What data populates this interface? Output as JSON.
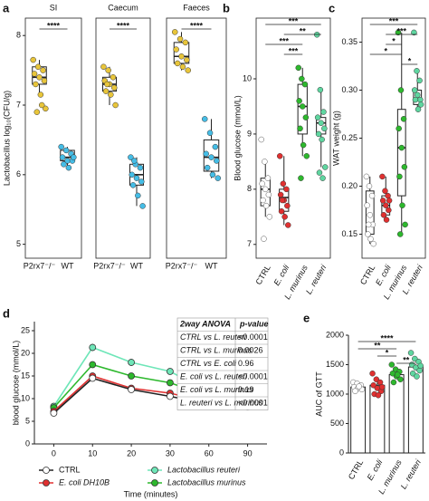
{
  "chart_data": [
    {
      "type": "box",
      "panel": "a",
      "title": "SI",
      "ylabel": "Lactobacillus log₁₀(CFU/g)",
      "ylim": [
        4.8,
        8.25
      ],
      "yticks": [
        5,
        6,
        7,
        8
      ],
      "groups": [
        {
          "name": "P2rx7⁻/⁻",
          "color": "#e8c53a",
          "values": [
            7.65,
            7.55,
            7.5,
            7.45,
            7.4,
            7.35,
            7.3,
            7.15,
            6.95,
            6.9,
            7.0
          ],
          "box": {
            "whislo": 7.15,
            "q1": 7.3,
            "med": 7.4,
            "q3": 7.55,
            "whishi": 7.65
          }
        },
        {
          "name": "WT",
          "color": "#45bde6",
          "values": [
            6.4,
            6.35,
            6.3,
            6.25,
            6.2,
            6.2,
            6.15,
            6.1,
            6.25
          ],
          "box": {
            "whislo": 6.1,
            "q1": 6.2,
            "med": 6.25,
            "q3": 6.35,
            "whishi": 6.4
          }
        }
      ],
      "significance": [
        {
          "from": 0,
          "to": 1,
          "label": "****"
        }
      ]
    },
    {
      "type": "box",
      "title": "Caecum",
      "ylim": [
        4.8,
        8.25
      ],
      "groups": [
        {
          "name": "P2rx7⁻/⁻",
          "color": "#e8c53a",
          "values": [
            7.55,
            7.5,
            7.4,
            7.35,
            7.3,
            7.25,
            7.2,
            7.15,
            7.0,
            7.3
          ],
          "box": {
            "whislo": 7.0,
            "q1": 7.2,
            "med": 7.3,
            "q3": 7.4,
            "whishi": 7.55
          }
        },
        {
          "name": "WT",
          "color": "#45bde6",
          "values": [
            6.25,
            6.15,
            6.1,
            6.0,
            5.95,
            5.9,
            5.85,
            5.7,
            5.55,
            6.2
          ],
          "box": {
            "whislo": 5.55,
            "q1": 5.85,
            "med": 6.0,
            "q3": 6.15,
            "whishi": 6.25
          }
        }
      ],
      "significance": [
        {
          "from": 0,
          "to": 1,
          "label": "****"
        }
      ]
    },
    {
      "type": "box",
      "title": "Faeces",
      "ylim": [
        4.8,
        8.25
      ],
      "groups": [
        {
          "name": "P2rx7⁻/⁻",
          "color": "#e8c53a",
          "values": [
            8.05,
            7.95,
            7.9,
            7.8,
            7.7,
            7.65,
            7.6,
            7.55,
            7.5
          ],
          "box": {
            "whislo": 7.5,
            "q1": 7.6,
            "med": 7.7,
            "q3": 7.9,
            "whishi": 8.05
          }
        },
        {
          "name": "WT",
          "color": "#45bde6",
          "values": [
            6.8,
            6.6,
            6.4,
            6.3,
            6.25,
            6.2,
            6.1,
            6.0,
            5.95
          ],
          "box": {
            "whislo": 5.95,
            "q1": 6.05,
            "med": 6.25,
            "q3": 6.5,
            "whishi": 6.8
          }
        }
      ],
      "significance": [
        {
          "from": 0,
          "to": 1,
          "label": "****"
        }
      ]
    },
    {
      "type": "box",
      "panel": "b",
      "ylabel": "Blood glucose (mmol/L)",
      "ylim": [
        6.75,
        11.1
      ],
      "yticks": [
        7,
        8,
        9,
        10
      ],
      "groups": [
        {
          "name": "CTRL",
          "color": "#ffffff",
          "values": [
            8.9,
            8.5,
            8.2,
            8.1,
            8.0,
            7.9,
            7.8,
            7.7,
            7.5,
            7.1
          ],
          "box": {
            "whislo": 7.5,
            "q1": 7.7,
            "med": 8.0,
            "q3": 8.2,
            "whishi": 8.5
          }
        },
        {
          "name": "E. coli",
          "color": "#e03030",
          "values": [
            8.6,
            8.1,
            8.0,
            7.9,
            7.8,
            7.7,
            7.6,
            7.5,
            7.35,
            7.8
          ],
          "box": {
            "whislo": 7.35,
            "q1": 7.6,
            "med": 7.85,
            "q3": 8.0,
            "whishi": 8.6
          }
        },
        {
          "name": "L. murinus",
          "color": "#2db82d",
          "values": [
            10.2,
            10.0,
            9.9,
            9.6,
            9.5,
            9.3,
            9.1,
            8.8,
            8.6,
            8.2
          ],
          "box": {
            "whislo": 8.6,
            "q1": 9.0,
            "med": 9.5,
            "q3": 9.9,
            "whishi": 10.2
          }
        },
        {
          "name": "L. reuteri",
          "color": "#5fd6a0",
          "values": [
            10.8,
            9.8,
            9.4,
            9.3,
            9.2,
            9.1,
            9.0,
            8.9,
            8.4,
            8.3,
            8.2
          ],
          "box": {
            "whislo": 8.4,
            "q1": 9.0,
            "med": 9.2,
            "q3": 9.3,
            "whishi": 9.8
          }
        }
      ],
      "significance": [
        {
          "from": 0,
          "to": 3,
          "label": "***"
        },
        {
          "from": 1,
          "to": 3,
          "label": "**"
        },
        {
          "from": 0,
          "to": 2,
          "label": "***"
        },
        {
          "from": 1,
          "to": 2,
          "label": "***"
        }
      ]
    },
    {
      "type": "box",
      "panel": "c",
      "ylabel": "WAT weight (g)",
      "ylim": [
        0.125,
        0.375
      ],
      "yticks": [
        {
          "value": 0.15,
          "label": "0.15"
        },
        {
          "value": 0.2,
          "label": "0.20"
        },
        {
          "value": 0.25,
          "label": "0.25"
        },
        {
          "value": 0.3,
          "label": "0.30"
        },
        {
          "value": 0.35,
          "label": "0.35"
        }
      ],
      "groups": [
        {
          "name": "CTRL",
          "color": "#ffffff",
          "values": [
            0.21,
            0.2,
            0.19,
            0.18,
            0.17,
            0.16,
            0.15,
            0.145,
            0.14,
            0.16
          ],
          "box": {
            "whislo": 0.14,
            "q1": 0.15,
            "med": 0.16,
            "q3": 0.195,
            "whishi": 0.21
          }
        },
        {
          "name": "E. coli",
          "color": "#e03030",
          "values": [
            0.21,
            0.195,
            0.19,
            0.185,
            0.18,
            0.175,
            0.17,
            0.165,
            0.185
          ],
          "box": {
            "whislo": 0.165,
            "q1": 0.17,
            "med": 0.18,
            "q3": 0.19,
            "whishi": 0.21
          }
        },
        {
          "name": "L. murinus",
          "color": "#2db82d",
          "values": [
            0.36,
            0.3,
            0.27,
            0.26,
            0.24,
            0.22,
            0.21,
            0.18,
            0.16,
            0.15
          ],
          "box": {
            "whislo": 0.15,
            "q1": 0.19,
            "med": 0.24,
            "q3": 0.28,
            "whishi": 0.36
          }
        },
        {
          "name": "L. reuteri",
          "color": "#5fd6a0",
          "values": [
            0.36,
            0.32,
            0.31,
            0.3,
            0.295,
            0.29,
            0.29,
            0.28,
            0.285
          ],
          "box": {
            "whislo": 0.28,
            "q1": 0.285,
            "med": 0.29,
            "q3": 0.3,
            "whishi": 0.32
          }
        }
      ],
      "significance": [
        {
          "from": 0,
          "to": 3,
          "label": "***"
        },
        {
          "from": 1,
          "to": 3,
          "label": "***"
        },
        {
          "from": 1,
          "to": 2,
          "label": "*"
        },
        {
          "from": 0,
          "to": 2,
          "label": "*"
        },
        {
          "from": 2,
          "to": 3,
          "label": "*"
        }
      ]
    },
    {
      "type": "line",
      "panel": "d",
      "xlabel": "Time (minutes)",
      "ylabel": "blood glucose (mmol/L)",
      "categories": [
        "0",
        "10",
        "20",
        "30",
        "60",
        "90"
      ],
      "ylim": [
        0,
        27
      ],
      "yticks": [
        0,
        5,
        10,
        15,
        20,
        25
      ],
      "series": [
        {
          "name": "CTRL",
          "color": "#ffffff",
          "values": [
            6.8,
            14.5,
            12.0,
            10.5,
            8.8,
            8.2
          ],
          "errors": [
            0.4,
            0.6,
            0.5,
            0.4,
            0.3,
            0.3
          ]
        },
        {
          "name": "Lactobacillus reuteri",
          "color": "#6ee6b8",
          "values": [
            8.3,
            21.3,
            18.0,
            16.0,
            11.5,
            9.0
          ],
          "errors": [
            0.4,
            0.8,
            0.8,
            0.7,
            0.5,
            0.4
          ]
        },
        {
          "name": "E. coli DH10B",
          "color": "#e03030",
          "values": [
            7.2,
            15.0,
            12.3,
            11.2,
            9.2,
            8.5
          ],
          "errors": [
            0.3,
            0.5,
            0.5,
            0.4,
            0.3,
            0.3
          ]
        },
        {
          "name": "Lactobacillus murinus",
          "color": "#2db82d",
          "values": [
            8.0,
            17.5,
            15.0,
            13.5,
            10.5,
            8.8
          ],
          "errors": [
            0.4,
            0.6,
            0.6,
            0.5,
            0.4,
            0.3
          ]
        }
      ],
      "table": {
        "header": [
          "2way ANOVA",
          "p-value"
        ],
        "rows": [
          [
            "CTRL vs L. reuteri",
            "<0.0001"
          ],
          [
            "CTRL vs L. murinus",
            "0.0026"
          ],
          [
            "CTRL vs E. coli",
            "0.96"
          ],
          [
            "E. coli vs L. reuteri",
            "<0.0001"
          ],
          [
            "E. coli vs L. murinus",
            "0.19"
          ],
          [
            "L. reuteri vs L. murinus",
            "<0.0001"
          ]
        ]
      }
    },
    {
      "type": "bar",
      "panel": "e",
      "ylabel": "AUC of GTT",
      "ylim": [
        0,
        2000
      ],
      "yticks": [
        0,
        500,
        1000,
        1500,
        2000
      ],
      "groups": [
        {
          "name": "CTRL",
          "color": "#ffffff",
          "mean": 1120,
          "error": 40,
          "values": [
            1200,
            1180,
            1150,
            1120,
            1100,
            1080,
            1050,
            1130
          ]
        },
        {
          "name": "E. coli",
          "color": "#e03030",
          "mean": 1150,
          "error": 45,
          "values": [
            1350,
            1250,
            1200,
            1150,
            1100,
            1050,
            1000,
            980,
            1120
          ]
        },
        {
          "name": "L. murinus",
          "color": "#2db82d",
          "mean": 1330,
          "error": 40,
          "values": [
            1500,
            1420,
            1380,
            1350,
            1300,
            1250,
            1200,
            1330
          ]
        },
        {
          "name": "L. reuteri",
          "color": "#5fd6a0",
          "mean": 1460,
          "error": 45,
          "values": [
            1700,
            1600,
            1550,
            1500,
            1450,
            1400,
            1350,
            1300,
            1480
          ]
        }
      ],
      "significance": [
        {
          "from": 0,
          "to": 3,
          "label": "****"
        },
        {
          "from": 0,
          "to": 2,
          "label": "**"
        },
        {
          "from": 1,
          "to": 2,
          "label": "*"
        },
        {
          "from": 2,
          "to": 3,
          "label": "**"
        }
      ]
    }
  ]
}
